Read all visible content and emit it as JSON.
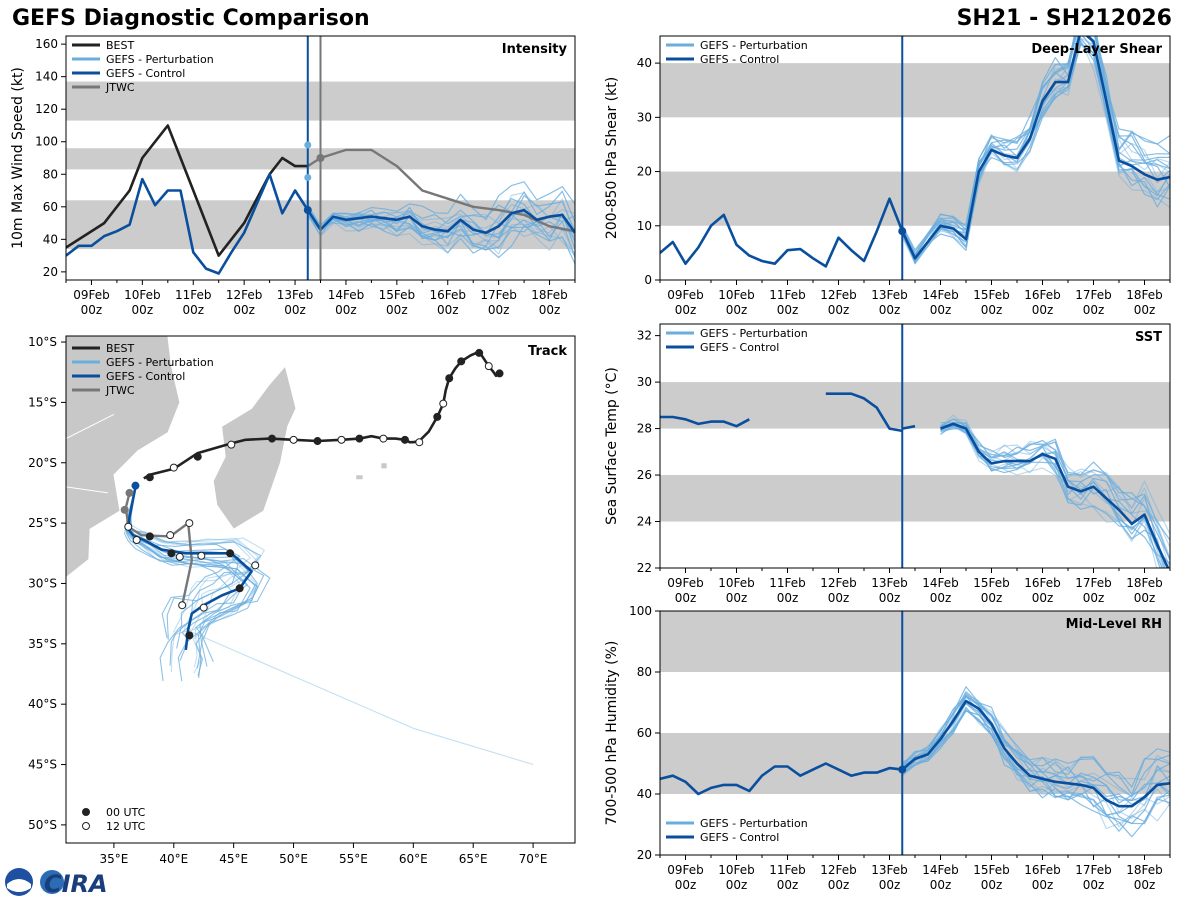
{
  "header": {
    "title_left": "GEFS Diagnostic Comparison",
    "title_right": "SH21 - SH212026"
  },
  "colors": {
    "best": "#222222",
    "perturbation": "#6aaede",
    "control": "#0a4f9e",
    "jtwc": "#777777",
    "band": "#cccccc"
  },
  "time_ticks": [
    {
      "day": "09Feb",
      "hour": "00z",
      "t": 9
    },
    {
      "day": "10Feb",
      "hour": "00z",
      "t": 10
    },
    {
      "day": "11Feb",
      "hour": "00z",
      "t": 11
    },
    {
      "day": "12Feb",
      "hour": "00z",
      "t": 12
    },
    {
      "day": "13Feb",
      "hour": "00z",
      "t": 13
    },
    {
      "day": "14Feb",
      "hour": "00z",
      "t": 14
    },
    {
      "day": "15Feb",
      "hour": "00z",
      "t": 15
    },
    {
      "day": "16Feb",
      "hour": "00z",
      "t": 16
    },
    {
      "day": "17Feb",
      "hour": "00z",
      "t": 17
    },
    {
      "day": "18Feb",
      "hour": "00z",
      "t": 18
    }
  ],
  "logo_text": "CIRA",
  "chart_data": [
    {
      "id": "intensity",
      "type": "line",
      "title": "Intensity",
      "ylabel": "10m Max Wind Speed (kt)",
      "xlim": [
        8.5,
        18.5
      ],
      "ylim": [
        15,
        165
      ],
      "yticks": [
        20,
        40,
        60,
        80,
        100,
        120,
        140,
        160
      ],
      "bands": [
        [
          34,
          64
        ],
        [
          83,
          96
        ],
        [
          113,
          137
        ]
      ],
      "vlines": [
        {
          "t": 13.25,
          "kind": "control"
        },
        {
          "t": 13.5,
          "kind": "jtwc"
        }
      ],
      "legend": [
        "BEST",
        "GEFS - Perturbation",
        "GEFS - Control",
        "JTWC"
      ],
      "best": {
        "t": [
          8.5,
          9.25,
          9.75,
          10,
          10.5,
          11,
          11.5,
          12,
          12.5,
          12.75,
          13,
          13.25
        ],
        "v": [
          35,
          50,
          70,
          90,
          110,
          70,
          30,
          50,
          80,
          90,
          85,
          85
        ]
      },
      "control": {
        "t": [
          8.5,
          8.75,
          9,
          9.25,
          9.5,
          9.75,
          10,
          10.25,
          10.5,
          10.75,
          11,
          11.25,
          11.5,
          11.75,
          12,
          12.25,
          12.5,
          12.75,
          13,
          13.25,
          13.5,
          13.75,
          14,
          14.25,
          14.5,
          14.75,
          15,
          15.25,
          15.5,
          15.75,
          16,
          16.25,
          16.5,
          16.75,
          17,
          17.25,
          17.5,
          17.75,
          18,
          18.25,
          18.5
        ],
        "v": [
          30,
          36,
          36,
          42,
          45,
          49,
          77,
          61,
          70,
          70,
          32,
          22,
          19,
          32,
          44,
          62,
          80,
          56,
          70,
          58,
          46,
          54,
          52,
          53,
          54,
          53,
          52,
          54,
          48,
          46,
          45,
          52,
          46,
          44,
          48,
          56,
          58,
          52,
          54,
          55,
          44
        ]
      },
      "jtwc": {
        "t": [
          13.25,
          13.5,
          14,
          14.5,
          15,
          15.5,
          16,
          16.5,
          17,
          17.5,
          18,
          18.5
        ],
        "v": [
          85,
          90,
          95,
          95,
          85,
          70,
          65,
          60,
          58,
          55,
          48,
          45
        ]
      },
      "control_point": {
        "t": 13.25,
        "v": 58
      },
      "perturbation_points": [
        {
          "t": 13.25,
          "v": 78
        },
        {
          "t": 13.25,
          "v": 98
        }
      ],
      "jtwc_point": {
        "t": 13.5,
        "v": 90
      },
      "perturbation_count": 16
    },
    {
      "id": "shear",
      "type": "line",
      "title": "Deep-Layer Shear",
      "ylabel": "200-850 hPa Shear (kt)",
      "xlim": [
        8.5,
        18.5
      ],
      "ylim": [
        0,
        45
      ],
      "yticks": [
        0,
        10,
        20,
        30,
        40
      ],
      "bands": [
        [
          10,
          20
        ],
        [
          30,
          40
        ]
      ],
      "vlines": [
        {
          "t": 13.25,
          "kind": "control"
        }
      ],
      "legend": [
        "GEFS - Perturbation",
        "GEFS - Control"
      ],
      "control": {
        "t": [
          8.5,
          8.75,
          9,
          9.25,
          9.5,
          9.75,
          10,
          10.25,
          10.5,
          10.75,
          11,
          11.25,
          11.5,
          11.75,
          12,
          12.25,
          12.5,
          12.75,
          13,
          13.25,
          13.5,
          13.75,
          14,
          14.25,
          14.5,
          14.75,
          15,
          15.25,
          15.5,
          15.75,
          16,
          16.25,
          16.5,
          16.75,
          17,
          17.25,
          17.5,
          17.75,
          18,
          18.25,
          18.5
        ],
        "v": [
          5,
          7,
          3,
          6,
          10,
          12,
          6.5,
          4.5,
          3.5,
          3,
          5.5,
          5.7,
          4,
          2.5,
          7.8,
          5.5,
          3.5,
          9,
          15,
          9,
          4,
          7,
          10,
          9.5,
          7.5,
          20,
          24,
          23,
          22.5,
          26,
          33,
          36.5,
          36.5,
          46,
          44,
          33,
          22,
          21,
          19.5,
          18.5,
          19
        ]
      },
      "control_point": {
        "t": 13.25,
        "v": 9
      },
      "perturbation_count": 18
    },
    {
      "id": "sst",
      "type": "line",
      "title": "SST",
      "ylabel": "Sea Surface Temp (°C)",
      "xlim": [
        8.5,
        18.5
      ],
      "ylim": [
        22,
        32.5
      ],
      "yticks": [
        22,
        24,
        26,
        28,
        30,
        32
      ],
      "bands": [
        [
          24,
          26
        ],
        [
          28,
          30
        ]
      ],
      "vlines": [
        {
          "t": 13.25,
          "kind": "control"
        }
      ],
      "legend": [
        "GEFS - Perturbation",
        "GEFS - Control"
      ],
      "control_segments": [
        {
          "t": [
            8.5,
            8.75,
            9,
            9.25,
            9.5,
            9.75,
            10,
            10.25
          ],
          "v": [
            28.5,
            28.5,
            28.4,
            28.2,
            28.3,
            28.3,
            28.1,
            28.4
          ]
        },
        {
          "t": [
            11.75,
            12,
            12.25,
            12.5,
            12.75,
            13,
            13.25
          ],
          "v": [
            29.5,
            29.5,
            29.5,
            29.3,
            28.9,
            28.0,
            27.9
          ]
        },
        {
          "t": [
            13.25,
            13.5
          ],
          "v": [
            28.0,
            28.1
          ]
        },
        {
          "t": [
            14,
            14.25,
            14.5,
            14.75,
            15,
            15.25,
            15.5,
            15.75,
            16,
            16.25,
            16.5,
            16.75,
            17,
            17.25,
            17.5,
            17.75,
            18,
            18.25,
            18.5
          ],
          "v": [
            28.0,
            28.2,
            28.0,
            27.0,
            26.5,
            26.6,
            26.6,
            26.6,
            26.9,
            26.7,
            25.5,
            25.3,
            25.5,
            25.0,
            24.5,
            23.9,
            24.3,
            23.0,
            21.8
          ]
        }
      ],
      "perturbation_count": 16
    },
    {
      "id": "rh",
      "type": "line",
      "title": "Mid-Level RH",
      "ylabel": "700-500 hPa Humidity (%)",
      "xlim": [
        8.5,
        18.5
      ],
      "ylim": [
        20,
        100
      ],
      "yticks": [
        20,
        40,
        60,
        80,
        100
      ],
      "bands": [
        [
          40,
          60
        ],
        [
          80,
          100
        ]
      ],
      "vlines": [
        {
          "t": 13.25,
          "kind": "control"
        }
      ],
      "legend": [
        "GEFS - Perturbation",
        "GEFS - Control"
      ],
      "control": {
        "t": [
          8.5,
          8.75,
          9,
          9.25,
          9.5,
          9.75,
          10,
          10.25,
          10.5,
          10.75,
          11,
          11.25,
          11.5,
          11.75,
          12,
          12.25,
          12.5,
          12.75,
          13,
          13.25,
          13.5,
          13.75,
          14,
          14.25,
          14.5,
          14.75,
          15,
          15.25,
          15.5,
          15.75,
          16,
          16.25,
          16.5,
          16.75,
          17,
          17.25,
          17.5,
          17.75,
          18,
          18.25,
          18.5
        ],
        "v": [
          45,
          46,
          44,
          40,
          42,
          43,
          43,
          41,
          46,
          49,
          49,
          46,
          48,
          50,
          48,
          46,
          47,
          47,
          48.5,
          48,
          51.5,
          53,
          58,
          64,
          70.5,
          68,
          63,
          55,
          50,
          46,
          45,
          44,
          43.5,
          43,
          42,
          38,
          36,
          36,
          39,
          43,
          43.5
        ]
      },
      "control_point": {
        "t": 13.25,
        "v": 48
      },
      "perturbation_count": 18
    },
    {
      "id": "track",
      "type": "scatter",
      "title": "Track",
      "xlim": [
        31,
        73.5
      ],
      "ylim": [
        -51.5,
        -9.5
      ],
      "xticks": [
        {
          "v": 35,
          "label": "35°E"
        },
        {
          "v": 40,
          "label": "40°E"
        },
        {
          "v": 45,
          "label": "45°E"
        },
        {
          "v": 50,
          "label": "50°E"
        },
        {
          "v": 55,
          "label": "55°E"
        },
        {
          "v": 60,
          "label": "60°E"
        },
        {
          "v": 65,
          "label": "65°E"
        },
        {
          "v": 70,
          "label": "70°E"
        }
      ],
      "yticks": [
        {
          "v": -10,
          "label": "10°S"
        },
        {
          "v": -15,
          "label": "15°S"
        },
        {
          "v": -20,
          "label": "20°S"
        },
        {
          "v": -25,
          "label": "25°S"
        },
        {
          "v": -30,
          "label": "30°S"
        },
        {
          "v": -35,
          "label": "35°S"
        },
        {
          "v": -40,
          "label": "40°S"
        },
        {
          "v": -45,
          "label": "45°S"
        },
        {
          "v": -50,
          "label": "50°S"
        }
      ],
      "legend": [
        "BEST",
        "GEFS - Perturbation",
        "GEFS - Control",
        "JTWC"
      ],
      "point_legend": [
        "00 UTC",
        "12 UTC"
      ],
      "best": {
        "lon": [
          67.2,
          66.9,
          66.7,
          66.3,
          65.5,
          64.8,
          64,
          63.5,
          63,
          62.7,
          62.5,
          62,
          61.3,
          60.5,
          60.0,
          59.7,
          59.3,
          58.5,
          57.5,
          56.5,
          55.5,
          54,
          52,
          50,
          48,
          46,
          44.8,
          42,
          40,
          38,
          37.5
        ],
        "lat": [
          -12.6,
          -12.8,
          -12.5,
          -12.0,
          -10.8,
          -11.1,
          -11.6,
          -12.2,
          -13.0,
          -14.0,
          -15.1,
          -16.2,
          -17.4,
          -18.2,
          -18.3,
          -18.3,
          -18.1,
          -18.0,
          -18.0,
          -17.8,
          -18.0,
          -18.1,
          -18.2,
          -18.1,
          -18.0,
          -18.1,
          -18.4,
          -19.2,
          -20.5,
          -21.0,
          -21.3
        ]
      },
      "best_00utc": [
        [
          67.2,
          -12.6
        ],
        [
          65.5,
          -10.9
        ],
        [
          64,
          -11.6
        ],
        [
          63,
          -13.0
        ],
        [
          62,
          -16.2
        ],
        [
          59.3,
          -18.1
        ],
        [
          55.5,
          -18.0
        ],
        [
          52,
          -18.2
        ],
        [
          48.2,
          -18.0
        ],
        [
          42,
          -19.5
        ],
        [
          38,
          -21.2
        ]
      ],
      "best_12utc": [
        [
          66.3,
          -12.0
        ],
        [
          62.5,
          -15.1
        ],
        [
          60.5,
          -18.3
        ],
        [
          57.5,
          -18.0
        ],
        [
          54,
          -18.1
        ],
        [
          50,
          -18.1
        ],
        [
          44.8,
          -18.5
        ],
        [
          40,
          -20.4
        ]
      ],
      "control": {
        "lon": [
          36.8,
          36.3,
          36.2,
          36.6,
          37.5,
          39,
          41,
          43,
          44.8,
          46.5,
          45.5,
          44,
          42.5,
          41.5,
          41.2,
          41.0
        ],
        "lat": [
          -22.0,
          -24.5,
          -25.5,
          -26.0,
          -26.4,
          -27.2,
          -27.5,
          -27.5,
          -27.5,
          -29.0,
          -30.4,
          -31.0,
          -31.8,
          -32.5,
          -33.8,
          -35.5
        ]
      },
      "control_00utc": [
        [
          41.3,
          -34.3
        ],
        [
          45.5,
          -30.4
        ],
        [
          44.7,
          -27.5
        ],
        [
          39.8,
          -27.5
        ],
        [
          38,
          -26.1
        ]
      ],
      "control_12utc": [
        [
          46.8,
          -28.5
        ],
        [
          42.5,
          -32.0
        ],
        [
          40.5,
          -27.8
        ],
        [
          36.9,
          -26.4
        ]
      ],
      "control_marker": [
        36.8,
        -21.9
      ],
      "jtwc": {
        "lon": [
          36.3,
          36.0,
          36.2,
          37.3,
          39.7,
          41.2,
          41.5,
          40.7
        ],
        "lat": [
          -22.5,
          -23.7,
          -25.3,
          -26.0,
          -26.1,
          -25.0,
          -28.1,
          -31.8
        ]
      },
      "jtwc_00utc": [
        [
          36.3,
          -22.5
        ],
        [
          35.9,
          -23.9
        ]
      ],
      "jtwc_12utc": [
        [
          36.2,
          -25.3
        ],
        [
          39.7,
          -26.0
        ],
        [
          41.3,
          -25.0
        ],
        [
          42.3,
          -27.7
        ],
        [
          40.7,
          -31.8
        ]
      ],
      "perturbation_count": 20
    }
  ]
}
